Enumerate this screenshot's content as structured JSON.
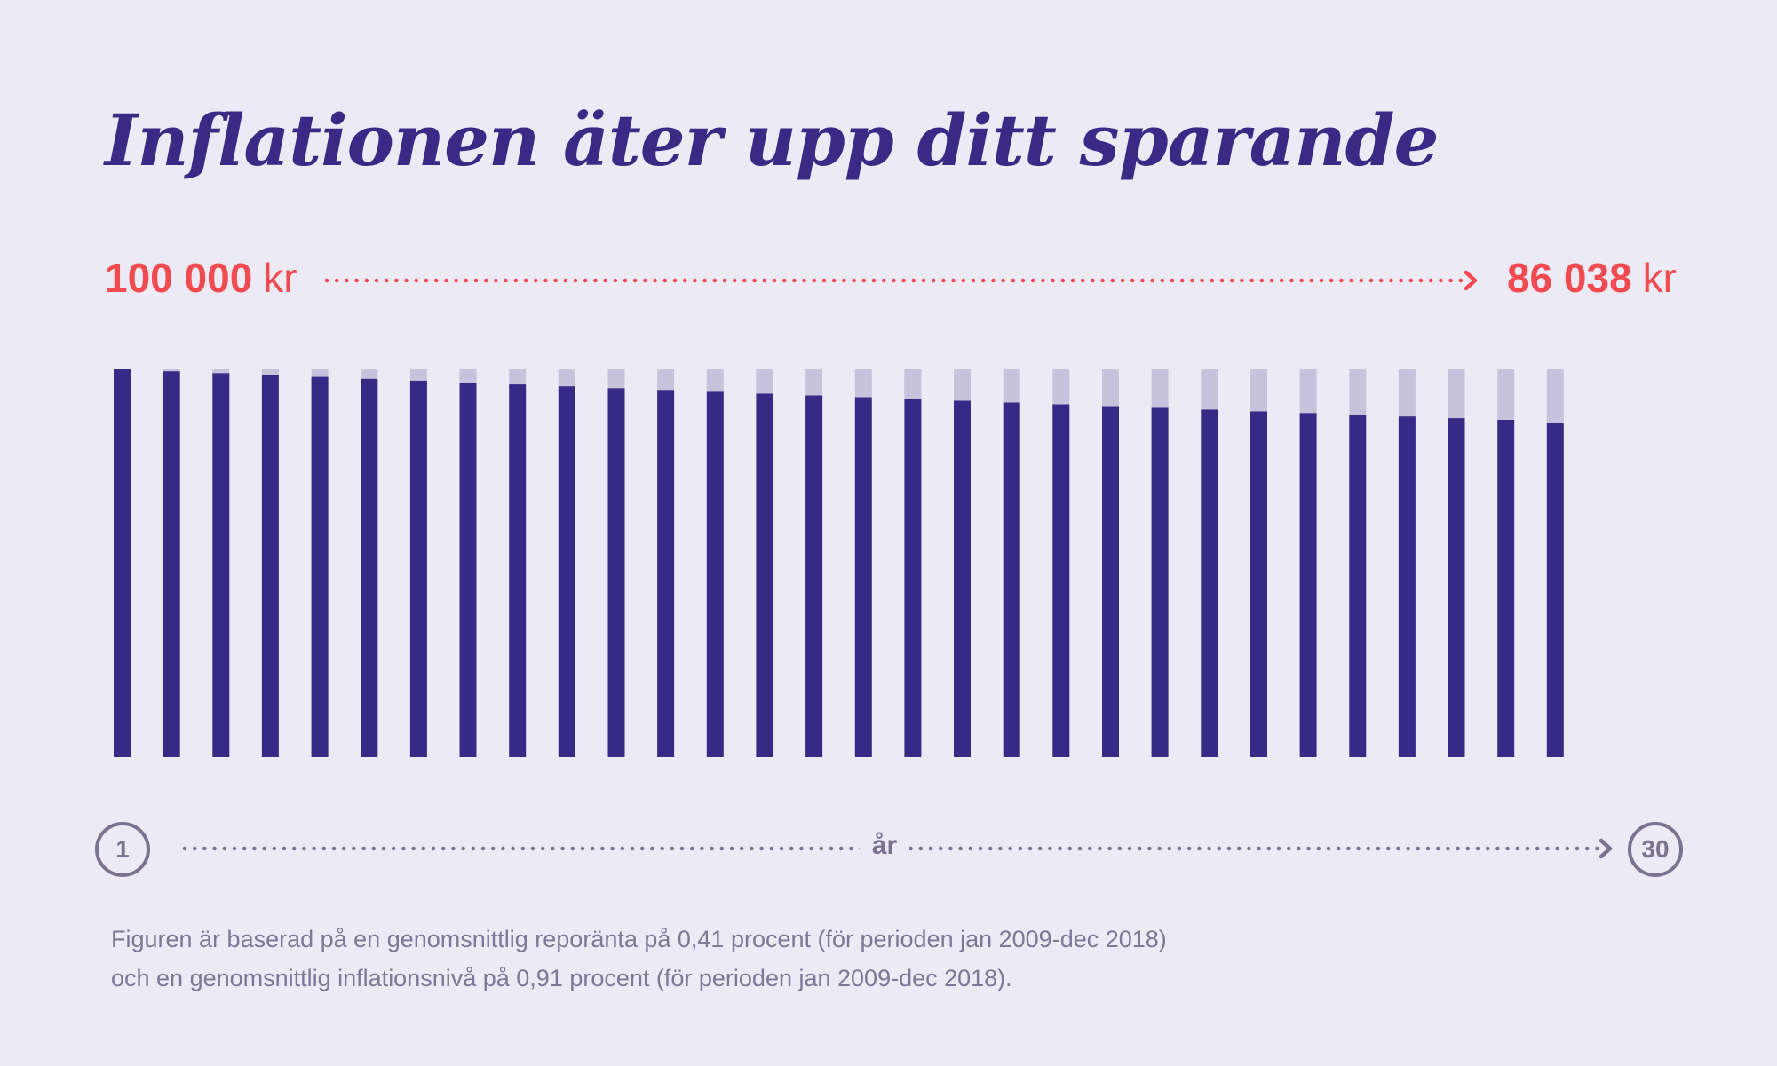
{
  "title": "Inflationen äter upp ditt sparande",
  "start_amount": {
    "value": "100 000",
    "unit": "kr"
  },
  "end_amount": {
    "value": "86 038",
    "unit": "kr"
  },
  "x_axis": {
    "label": "år",
    "start": "1",
    "end": "30"
  },
  "footnote": {
    "line1": "Figuren är baserad på en genomsnittlig reporänta på 0,41 procent (för perioden jan 2009-dec 2018)",
    "line2": "och en genomsnittlig inflationsnivå på 0,91 procent (för perioden jan 2009-dec 2018)."
  },
  "colors": {
    "background": "#ECEAF4",
    "title": "#3A2A86",
    "bar_value": "#372A87",
    "bar_loss": "#C7C3DD",
    "amount": "#EF4B50",
    "axis": "#7A728E",
    "footnote": "#7E7796"
  },
  "chart_data": {
    "type": "bar",
    "stacked": true,
    "categories": [
      1,
      2,
      3,
      4,
      5,
      6,
      7,
      8,
      9,
      10,
      11,
      12,
      13,
      14,
      15,
      16,
      17,
      18,
      19,
      20,
      21,
      22,
      23,
      24,
      25,
      26,
      27,
      28,
      29,
      30
    ],
    "ylim": [
      0,
      100000
    ],
    "series": [
      {
        "key": "real_value",
        "color": "#372A87",
        "values": [
          100000,
          99502,
          99007,
          98514,
          98024,
          97536,
          97051,
          96568,
          96087,
          95609,
          95133,
          94660,
          94189,
          93720,
          93254,
          92790,
          92328,
          91869,
          91412,
          90957,
          90504,
          90054,
          89606,
          89160,
          88716,
          88275,
          87835,
          87398,
          86963,
          86038
        ]
      },
      {
        "key": "inflation_loss",
        "color": "#C7C3DD",
        "values": [
          0,
          498,
          993,
          1486,
          1976,
          2464,
          2949,
          3432,
          3913,
          4391,
          4867,
          5340,
          5811,
          6280,
          6746,
          7210,
          7672,
          8131,
          8588,
          9043,
          9496,
          9946,
          10394,
          10840,
          11284,
          11725,
          12165,
          12602,
          13037,
          13962
        ]
      }
    ],
    "grid": false,
    "legend": "none"
  }
}
